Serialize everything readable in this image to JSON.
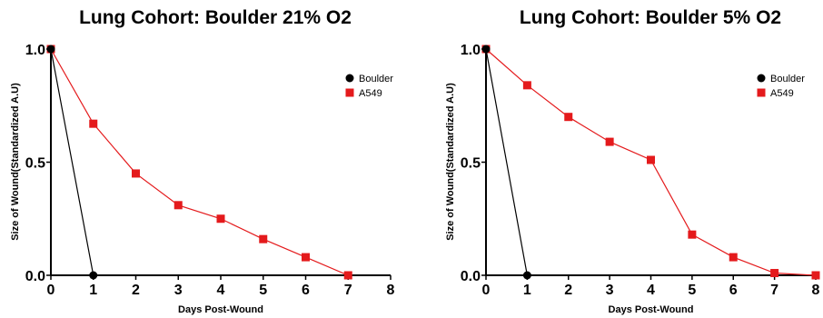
{
  "colors": {
    "boulder": "#000000",
    "a549": "#e41a1c"
  },
  "chart_data": [
    {
      "type": "line",
      "title": "Lung Cohort: Boulder 21% O2",
      "xlabel": "Days Post-Wound",
      "ylabel": "Size of Wound(Standardized A.U)",
      "xlim": [
        0,
        8
      ],
      "ylim": [
        0,
        1.0
      ],
      "x_ticks": [
        "0",
        "1",
        "2",
        "3",
        "4",
        "5",
        "6",
        "7",
        "8"
      ],
      "y_ticks": [
        "0.0",
        "0.5",
        "1.0"
      ],
      "legend_position": "top-right",
      "grid": false,
      "series": [
        {
          "name": "Boulder",
          "marker": "circle",
          "x": [
            0,
            1
          ],
          "y": [
            1.0,
            0.0
          ]
        },
        {
          "name": "A549",
          "marker": "square",
          "x": [
            0,
            1,
            2,
            3,
            4,
            5,
            6,
            7
          ],
          "y": [
            1.0,
            0.67,
            0.45,
            0.31,
            0.25,
            0.16,
            0.08,
            0.0
          ]
        }
      ]
    },
    {
      "type": "line",
      "title": "Lung Cohort: Boulder 5% O2",
      "xlabel": "Days Post-Wound",
      "ylabel": "Size of Wound(Standardized A.U)",
      "xlim": [
        0,
        8
      ],
      "ylim": [
        0,
        1.0
      ],
      "x_ticks": [
        "0",
        "1",
        "2",
        "3",
        "4",
        "5",
        "6",
        "7",
        "8"
      ],
      "y_ticks": [
        "0.0",
        "0.5",
        "1.0"
      ],
      "legend_position": "top-right",
      "grid": false,
      "series": [
        {
          "name": "Boulder",
          "marker": "circle",
          "x": [
            0,
            1
          ],
          "y": [
            1.0,
            0.0
          ]
        },
        {
          "name": "A549",
          "marker": "square",
          "x": [
            0,
            1,
            2,
            3,
            4,
            5,
            6,
            7,
            8
          ],
          "y": [
            1.0,
            0.84,
            0.7,
            0.59,
            0.51,
            0.18,
            0.08,
            0.01,
            0.0
          ]
        }
      ]
    }
  ]
}
